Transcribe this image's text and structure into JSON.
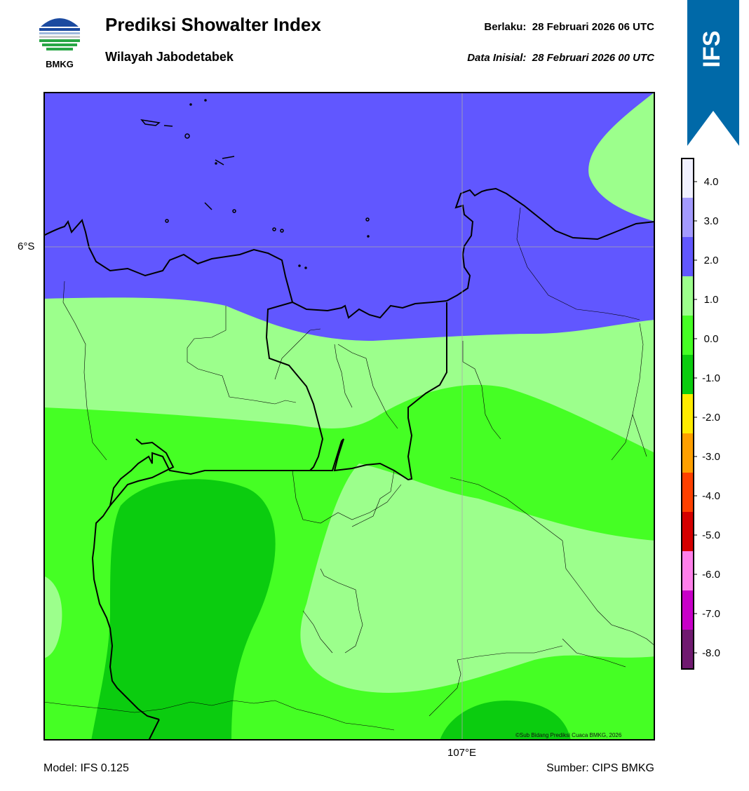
{
  "header": {
    "title": "Prediksi Showalter Index",
    "subtitle": "Wilayah Jabodetabek",
    "valid_label": "Berlaku:",
    "valid_time": "28 Februari 2026 06 UTC",
    "init_label": "Data Inisial:",
    "init_time": "28 Februari 2026 00 UTC"
  },
  "logo": {
    "text": "BMKG",
    "icon": "bmkg-logo"
  },
  "ribbon": {
    "text": "IFS",
    "color": "#0069a8"
  },
  "map": {
    "lat_label": "6°S",
    "lon_label": "107°E",
    "credit": "©Sub Bidang Prediksi Cuaca BMKG, 2026"
  },
  "colorbar": {
    "labels": [
      "4.0",
      "3.0",
      "2.0",
      "1.0",
      "0.0",
      "-1.0",
      "-2.0",
      "-3.0",
      "-4.0",
      "-5.0",
      "-6.0",
      "-7.0",
      "-8.0"
    ],
    "colors": [
      "#f0f0ff",
      "#a39aff",
      "#6157ff",
      "#9cff8c",
      "#45ff24",
      "#0bcc0f",
      "#ffeb00",
      "#ff9f00",
      "#ff4000",
      "#d40000",
      "#ff7fea",
      "#c800c8",
      "#701a70"
    ]
  },
  "footer": {
    "model": "Model: IFS 0.125",
    "source": "Sumber: CIPS BMKG"
  }
}
